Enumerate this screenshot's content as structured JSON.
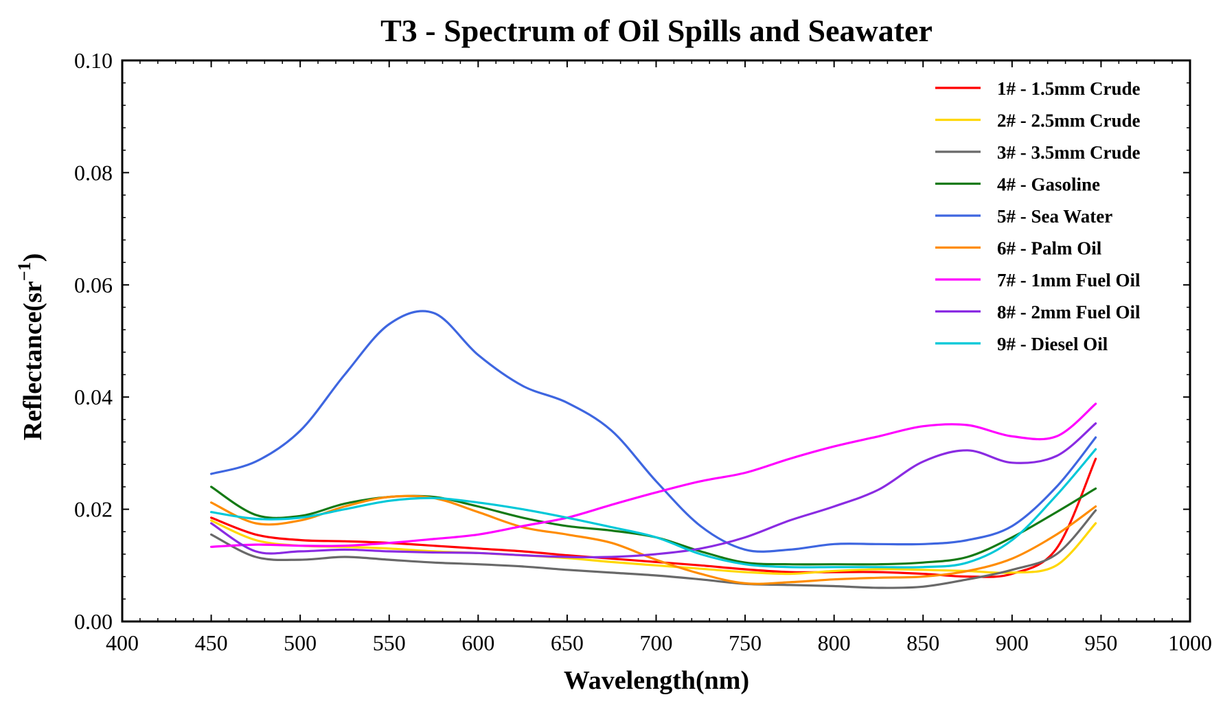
{
  "chart_data": {
    "type": "line",
    "title": "T3 - Spectrum of Oil Spills and Seawater",
    "xlabel": "Wavelength(nm)",
    "ylabel": "Reflectance(sr",
    "ylabel_superscript": "−1",
    "ylabel_close": ")",
    "xlim": [
      400,
      1000
    ],
    "ylim": [
      0,
      0.1
    ],
    "x_ticks": [
      400,
      450,
      500,
      550,
      600,
      650,
      700,
      750,
      800,
      850,
      900,
      950,
      1000
    ],
    "x_tick_labels": [
      "400",
      "450",
      "500",
      "550",
      "600",
      "650",
      "700",
      "750",
      "800",
      "850",
      "900",
      "950",
      "1000"
    ],
    "y_ticks": [
      0,
      0.02,
      0.04,
      0.06,
      0.08,
      0.1
    ],
    "y_tick_labels": [
      "0.00",
      "0.02",
      "0.04",
      "0.06",
      "0.08",
      "0.10"
    ],
    "grid": false,
    "legend_position": "top-right",
    "x": [
      450,
      475,
      500,
      525,
      550,
      575,
      600,
      625,
      650,
      675,
      700,
      725,
      750,
      775,
      800,
      825,
      850,
      875,
      900,
      925,
      947
    ],
    "series": [
      {
        "name": "1# - 1.5mm Crude",
        "color": "#ff0000",
        "values": [
          0.0185,
          0.0155,
          0.0145,
          0.0143,
          0.014,
          0.0135,
          0.013,
          0.0125,
          0.0118,
          0.0112,
          0.0106,
          0.01,
          0.0093,
          0.0088,
          0.0088,
          0.0088,
          0.0085,
          0.008,
          0.0085,
          0.013,
          0.029
        ]
      },
      {
        "name": "2# - 2.5mm Crude",
        "color": "#ffd700",
        "values": [
          0.018,
          0.0145,
          0.0135,
          0.0133,
          0.013,
          0.0125,
          0.0122,
          0.0118,
          0.0113,
          0.0106,
          0.01,
          0.0094,
          0.0088,
          0.0085,
          0.009,
          0.0093,
          0.0092,
          0.009,
          0.0087,
          0.01,
          0.0175
        ]
      },
      {
        "name": "3# - 3.5mm Crude",
        "color": "#696969",
        "values": [
          0.0155,
          0.0115,
          0.011,
          0.0115,
          0.011,
          0.0105,
          0.0102,
          0.0098,
          0.0092,
          0.0087,
          0.0082,
          0.0075,
          0.0067,
          0.0065,
          0.0063,
          0.006,
          0.0062,
          0.0075,
          0.0092,
          0.012,
          0.0198
        ]
      },
      {
        "name": "4# - Gasoline",
        "color": "#157a15",
        "values": [
          0.024,
          0.019,
          0.0188,
          0.021,
          0.0222,
          0.0222,
          0.0205,
          0.0185,
          0.017,
          0.0162,
          0.015,
          0.0125,
          0.0105,
          0.0102,
          0.0102,
          0.0102,
          0.0105,
          0.0115,
          0.015,
          0.0195,
          0.0237
        ]
      },
      {
        "name": "5# - Sea Water",
        "color": "#3e66e0",
        "values": [
          0.0263,
          0.0285,
          0.034,
          0.044,
          0.053,
          0.055,
          0.0475,
          0.042,
          0.039,
          0.034,
          0.025,
          0.017,
          0.0128,
          0.0128,
          0.0138,
          0.0138,
          0.0138,
          0.0145,
          0.017,
          0.024,
          0.0328
        ]
      },
      {
        "name": "6# - Palm Oil",
        "color": "#ff8c00",
        "values": [
          0.0212,
          0.0175,
          0.018,
          0.0205,
          0.0222,
          0.022,
          0.0195,
          0.0168,
          0.0155,
          0.014,
          0.011,
          0.0085,
          0.0068,
          0.007,
          0.0075,
          0.0078,
          0.008,
          0.009,
          0.0112,
          0.0155,
          0.0205
        ]
      },
      {
        "name": "7# - 1mm Fuel Oil",
        "color": "#ff00ff",
        "values": [
          0.0133,
          0.0137,
          0.0135,
          0.0135,
          0.014,
          0.0147,
          0.0155,
          0.017,
          0.0185,
          0.0208,
          0.023,
          0.025,
          0.0265,
          0.029,
          0.0312,
          0.033,
          0.0348,
          0.035,
          0.033,
          0.033,
          0.0388
        ]
      },
      {
        "name": "8# - 2mm Fuel Oil",
        "color": "#8a2be2",
        "values": [
          0.0175,
          0.0125,
          0.0125,
          0.0128,
          0.0125,
          0.0123,
          0.0122,
          0.0118,
          0.0115,
          0.0115,
          0.012,
          0.013,
          0.015,
          0.018,
          0.0205,
          0.0235,
          0.0285,
          0.0305,
          0.0283,
          0.0295,
          0.0353
        ]
      },
      {
        "name": "9# - Diesel Oil",
        "color": "#00c8d8",
        "values": [
          0.0195,
          0.0183,
          0.0185,
          0.02,
          0.0215,
          0.022,
          0.0212,
          0.02,
          0.0185,
          0.0168,
          0.015,
          0.012,
          0.0102,
          0.0097,
          0.0097,
          0.0097,
          0.0097,
          0.0105,
          0.0145,
          0.0225,
          0.0307
        ]
      }
    ]
  }
}
